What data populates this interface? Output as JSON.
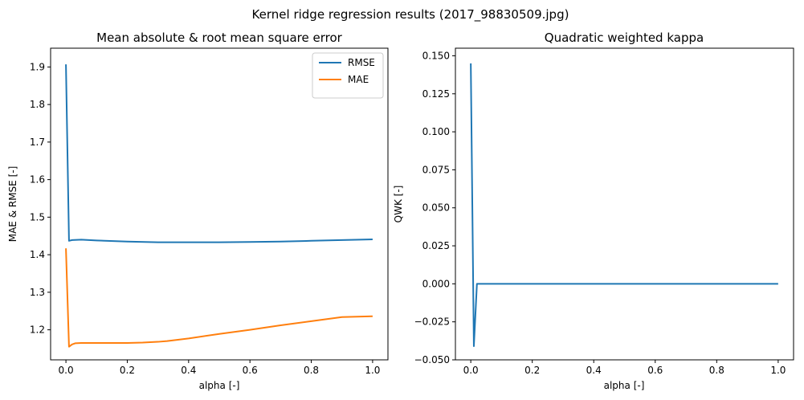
{
  "title": "Kernel ridge regression results (2017_98830509.jpg)",
  "chart_data": [
    {
      "type": "line",
      "title": "Mean absolute & root mean square error",
      "xlabel": "alpha [-]",
      "ylabel": "MAE & RMSE [-]",
      "xlim": [
        -0.05,
        1.05
      ],
      "ylim": [
        1.12,
        1.95
      ],
      "xticks": [
        "0.0",
        "0.2",
        "0.4",
        "0.6",
        "0.8",
        "1.0"
      ],
      "yticks": [
        "1.2",
        "1.3",
        "1.4",
        "1.5",
        "1.6",
        "1.7",
        "1.8",
        "1.9"
      ],
      "grid": false,
      "legend": "upper right",
      "series": [
        {
          "name": "RMSE",
          "color": "#1f77b4",
          "x": [
            0.0,
            0.01,
            0.02,
            0.05,
            0.1,
            0.2,
            0.3,
            0.4,
            0.5,
            0.6,
            0.7,
            0.8,
            0.9,
            1.0
          ],
          "y": [
            1.907,
            1.437,
            1.439,
            1.44,
            1.438,
            1.435,
            1.433,
            1.433,
            1.433,
            1.434,
            1.435,
            1.437,
            1.439,
            1.441
          ]
        },
        {
          "name": "MAE",
          "color": "#ff7f0e",
          "x": [
            0.0,
            0.01,
            0.02,
            0.03,
            0.05,
            0.1,
            0.2,
            0.25,
            0.3,
            0.33,
            0.4,
            0.5,
            0.6,
            0.7,
            0.8,
            0.9,
            1.0
          ],
          "y": [
            1.417,
            1.155,
            1.161,
            1.164,
            1.165,
            1.165,
            1.165,
            1.166,
            1.168,
            1.17,
            1.177,
            1.189,
            1.2,
            1.212,
            1.223,
            1.234,
            1.236
          ]
        }
      ]
    },
    {
      "type": "line",
      "title": "Quadratic weighted kappa",
      "xlabel": "alpha [-]",
      "ylabel": "QWK [-]",
      "xlim": [
        -0.05,
        1.05
      ],
      "ylim": [
        -0.05,
        0.155
      ],
      "xticks": [
        "0.0",
        "0.2",
        "0.4",
        "0.6",
        "0.8",
        "1.0"
      ],
      "yticks": [
        "−0.050",
        "−0.025",
        "0.000",
        "0.025",
        "0.050",
        "0.075",
        "0.100",
        "0.125",
        "0.150"
      ],
      "grid": false,
      "series": [
        {
          "color": "#1f77b4",
          "x": [
            0.0,
            0.01,
            0.02,
            0.1,
            0.5,
            1.0
          ],
          "y": [
            0.145,
            -0.041,
            0.0,
            0.0,
            0.0,
            0.0
          ]
        }
      ]
    }
  ]
}
